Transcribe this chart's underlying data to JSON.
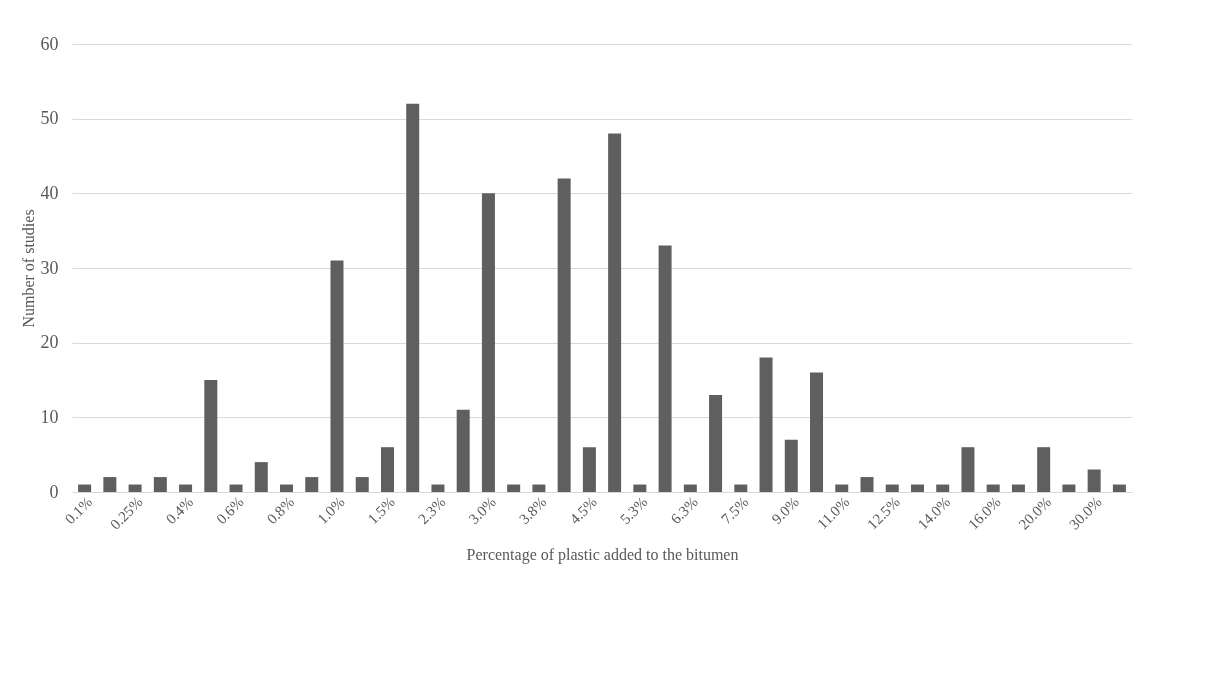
{
  "chart_data": {
    "type": "bar",
    "xlabel": "Percentage of plastic added to the bitumen",
    "ylabel": "Number of studies",
    "categories": [
      "0.1%",
      null,
      "0.25%",
      null,
      "0.4%",
      null,
      "0.6%",
      null,
      "0.8%",
      null,
      "1.0%",
      null,
      "1.5%",
      null,
      "2.3%",
      null,
      "3.0%",
      null,
      "3.8%",
      null,
      "4.5%",
      null,
      "5.3%",
      null,
      "6.3%",
      null,
      "7.5%",
      null,
      "9.0%",
      null,
      "11.0%",
      null,
      "12.5%",
      null,
      "14.0%",
      null,
      "16.0%",
      null,
      "20.0%",
      null,
      "30.0%",
      null
    ],
    "values": [
      1,
      2,
      1,
      2,
      1,
      15,
      1,
      4,
      1,
      2,
      31,
      2,
      6,
      52,
      1,
      11,
      40,
      1,
      1,
      42,
      6,
      48,
      1,
      33,
      1,
      13,
      1,
      18,
      7,
      16,
      1,
      2,
      1,
      1,
      1,
      6,
      1,
      1,
      6,
      1,
      3,
      1
    ],
    "color": "#5f5f5f",
    "ylim": [
      0,
      60
    ],
    "yticks": [
      0,
      10,
      20,
      30,
      40,
      50,
      60
    ],
    "grid": "y"
  }
}
